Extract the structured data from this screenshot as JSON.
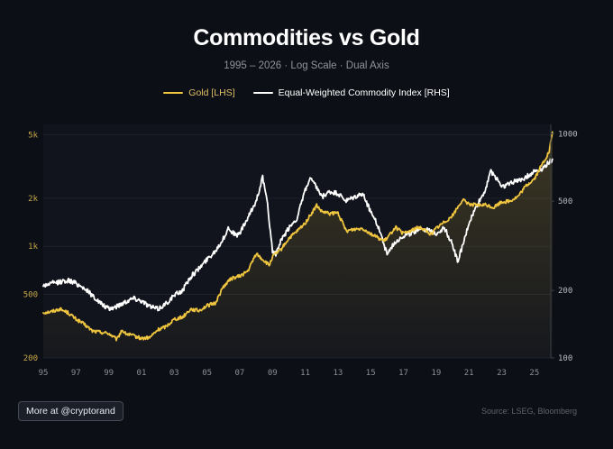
{
  "chart_data": {
    "type": "line",
    "title": "Commodities vs Gold",
    "subtitle": "1995 – 2026 · Log Scale · Dual Axis",
    "x_range": [
      1995,
      2026
    ],
    "x_ticks": [
      1995,
      1997,
      1999,
      2001,
      2003,
      2005,
      2007,
      2009,
      2011,
      2013,
      2015,
      2017,
      2019,
      2021,
      2023,
      2025
    ],
    "x_tick_labels": [
      "95",
      "97",
      "99",
      "01",
      "03",
      "05",
      "07",
      "09",
      "11",
      "13",
      "15",
      "17",
      "19",
      "21",
      "23",
      "25"
    ],
    "y_left": {
      "scale": "log",
      "range": [
        200,
        5800
      ],
      "ticks": [
        200,
        500,
        1000,
        2000,
        5000
      ],
      "tick_labels": [
        "200",
        "500",
        "1k",
        "2k",
        "5k"
      ]
    },
    "y_right": {
      "scale": "log",
      "range": [
        100,
        1100
      ],
      "ticks": [
        100,
        200,
        500,
        1000
      ],
      "tick_labels": [
        "100",
        "200",
        "500",
        "1000"
      ]
    },
    "series": [
      {
        "name": "Gold [LHS]",
        "axis": "left",
        "color": "#f0c53f",
        "points": [
          [
            1995.0,
            385
          ],
          [
            1995.5,
            390
          ],
          [
            1996.0,
            405
          ],
          [
            1996.5,
            385
          ],
          [
            1997.0,
            350
          ],
          [
            1997.5,
            325
          ],
          [
            1998.0,
            295
          ],
          [
            1998.5,
            290
          ],
          [
            1999.0,
            285
          ],
          [
            1999.5,
            260
          ],
          [
            1999.8,
            300
          ],
          [
            2000.0,
            285
          ],
          [
            2000.5,
            275
          ],
          [
            2001.0,
            265
          ],
          [
            2001.5,
            268
          ],
          [
            2002.0,
            300
          ],
          [
            2002.5,
            315
          ],
          [
            2003.0,
            350
          ],
          [
            2003.5,
            360
          ],
          [
            2004.0,
            405
          ],
          [
            2004.5,
            395
          ],
          [
            2005.0,
            425
          ],
          [
            2005.5,
            440
          ],
          [
            2006.0,
            560
          ],
          [
            2006.5,
            630
          ],
          [
            2007.0,
            650
          ],
          [
            2007.5,
            700
          ],
          [
            2008.0,
            900
          ],
          [
            2008.8,
            760
          ],
          [
            2009.0,
            860
          ],
          [
            2009.5,
            950
          ],
          [
            2010.0,
            1120
          ],
          [
            2010.5,
            1240
          ],
          [
            2011.0,
            1400
          ],
          [
            2011.7,
            1800
          ],
          [
            2012.0,
            1650
          ],
          [
            2012.5,
            1600
          ],
          [
            2013.0,
            1620
          ],
          [
            2013.5,
            1250
          ],
          [
            2014.0,
            1280
          ],
          [
            2014.5,
            1300
          ],
          [
            2015.0,
            1200
          ],
          [
            2015.8,
            1080
          ],
          [
            2016.0,
            1120
          ],
          [
            2016.5,
            1320
          ],
          [
            2017.0,
            1200
          ],
          [
            2017.5,
            1260
          ],
          [
            2018.0,
            1320
          ],
          [
            2018.7,
            1190
          ],
          [
            2019.0,
            1300
          ],
          [
            2019.5,
            1420
          ],
          [
            2020.0,
            1560
          ],
          [
            2020.6,
            1950
          ],
          [
            2021.0,
            1850
          ],
          [
            2021.5,
            1800
          ],
          [
            2022.0,
            1820
          ],
          [
            2022.5,
            1750
          ],
          [
            2023.0,
            1900
          ],
          [
            2023.5,
            1920
          ],
          [
            2024.0,
            2050
          ],
          [
            2024.5,
            2400
          ],
          [
            2025.0,
            2650
          ],
          [
            2025.5,
            3300
          ],
          [
            2025.9,
            3900
          ],
          [
            2026.1,
            5200
          ]
        ]
      },
      {
        "name": "Equal-Weighted Commodity Index [RHS]",
        "axis": "right",
        "color": "#ffffff",
        "points": [
          [
            1995.0,
            210
          ],
          [
            1995.5,
            215
          ],
          [
            1996.0,
            218
          ],
          [
            1996.5,
            222
          ],
          [
            1997.0,
            215
          ],
          [
            1997.5,
            205
          ],
          [
            1998.0,
            190
          ],
          [
            1998.5,
            175
          ],
          [
            1999.0,
            165
          ],
          [
            1999.5,
            170
          ],
          [
            2000.0,
            178
          ],
          [
            2000.5,
            185
          ],
          [
            2001.0,
            180
          ],
          [
            2001.5,
            170
          ],
          [
            2002.0,
            165
          ],
          [
            2002.5,
            175
          ],
          [
            2003.0,
            190
          ],
          [
            2003.5,
            200
          ],
          [
            2004.0,
            230
          ],
          [
            2004.5,
            250
          ],
          [
            2005.0,
            275
          ],
          [
            2005.5,
            300
          ],
          [
            2006.0,
            340
          ],
          [
            2006.3,
            380
          ],
          [
            2006.8,
            350
          ],
          [
            2007.0,
            360
          ],
          [
            2007.5,
            420
          ],
          [
            2008.0,
            500
          ],
          [
            2008.4,
            640
          ],
          [
            2008.7,
            480
          ],
          [
            2009.0,
            300
          ],
          [
            2009.2,
            290
          ],
          [
            2009.5,
            330
          ],
          [
            2010.0,
            380
          ],
          [
            2010.5,
            420
          ],
          [
            2011.0,
            560
          ],
          [
            2011.3,
            630
          ],
          [
            2011.8,
            560
          ],
          [
            2012.0,
            520
          ],
          [
            2012.5,
            550
          ],
          [
            2013.0,
            540
          ],
          [
            2013.5,
            500
          ],
          [
            2014.0,
            520
          ],
          [
            2014.5,
            540
          ],
          [
            2015.0,
            450
          ],
          [
            2015.5,
            380
          ],
          [
            2016.0,
            290
          ],
          [
            2016.5,
            330
          ],
          [
            2017.0,
            350
          ],
          [
            2017.5,
            360
          ],
          [
            2018.0,
            380
          ],
          [
            2018.5,
            370
          ],
          [
            2019.0,
            360
          ],
          [
            2019.5,
            380
          ],
          [
            2020.0,
            320
          ],
          [
            2020.3,
            270
          ],
          [
            2020.7,
            330
          ],
          [
            2021.0,
            400
          ],
          [
            2021.5,
            480
          ],
          [
            2022.0,
            560
          ],
          [
            2022.3,
            680
          ],
          [
            2022.8,
            620
          ],
          [
            2023.0,
            580
          ],
          [
            2023.5,
            600
          ],
          [
            2024.0,
            620
          ],
          [
            2024.5,
            640
          ],
          [
            2025.0,
            680
          ],
          [
            2025.5,
            700
          ],
          [
            2026.1,
            770
          ]
        ]
      }
    ],
    "legend_position": "top-center",
    "source": "Source: LSEG, Bloomberg"
  },
  "legend": [
    {
      "label": "Gold [LHS]",
      "color": "#f0c53f"
    },
    {
      "label": "Equal-Weighted Commodity Index [RHS]",
      "color": "#ffffff"
    }
  ],
  "footer": {
    "button_label": "More at @cryptorand",
    "source": "Source: LSEG, Bloomberg"
  }
}
